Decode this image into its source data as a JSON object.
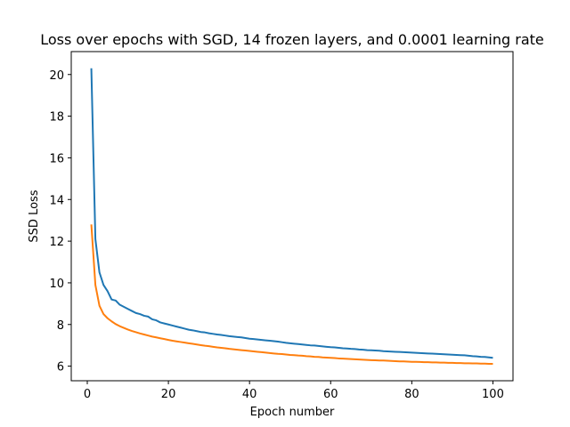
{
  "chart_data": {
    "type": "line",
    "title": "Loss over epochs with SGD, 14 frozen layers, and 0.0001 learning rate",
    "xlabel": "Epoch number",
    "ylabel": "SSD Loss",
    "xlim": [
      -3.95,
      104.95
    ],
    "ylim": [
      5.3,
      21.1
    ],
    "xticks": [
      0,
      20,
      40,
      60,
      80,
      100
    ],
    "yticks": [
      6,
      8,
      10,
      12,
      14,
      16,
      18,
      20
    ],
    "grid": false,
    "legend": "none",
    "series": [
      {
        "color": "#1f77b4",
        "x": [
          1,
          2,
          3,
          4,
          5,
          6,
          7,
          8,
          9,
          10,
          11,
          12,
          13,
          14,
          15,
          16,
          17,
          18,
          19,
          20,
          21,
          22,
          23,
          24,
          25,
          26,
          27,
          28,
          29,
          30,
          31,
          32,
          33,
          34,
          35,
          36,
          37,
          38,
          39,
          40,
          41,
          42,
          43,
          44,
          45,
          46,
          47,
          48,
          49,
          50,
          51,
          52,
          53,
          54,
          55,
          56,
          57,
          58,
          59,
          60,
          61,
          62,
          63,
          64,
          65,
          66,
          67,
          68,
          69,
          70,
          71,
          72,
          73,
          74,
          75,
          76,
          77,
          78,
          79,
          80,
          81,
          82,
          83,
          84,
          85,
          86,
          87,
          88,
          89,
          90,
          91,
          92,
          93,
          94,
          95,
          96,
          97,
          98,
          99,
          100
        ],
        "values": [
          20.3,
          12.1,
          10.5,
          9.9,
          9.6,
          9.2,
          9.15,
          8.95,
          8.85,
          8.75,
          8.65,
          8.55,
          8.5,
          8.42,
          8.38,
          8.25,
          8.2,
          8.1,
          8.05,
          8.0,
          7.95,
          7.9,
          7.85,
          7.8,
          7.75,
          7.72,
          7.68,
          7.64,
          7.62,
          7.58,
          7.55,
          7.52,
          7.5,
          7.47,
          7.44,
          7.42,
          7.4,
          7.38,
          7.35,
          7.32,
          7.3,
          7.28,
          7.26,
          7.24,
          7.22,
          7.2,
          7.18,
          7.15,
          7.12,
          7.1,
          7.08,
          7.06,
          7.04,
          7.02,
          7.0,
          6.99,
          6.97,
          6.95,
          6.93,
          6.91,
          6.9,
          6.88,
          6.86,
          6.85,
          6.83,
          6.82,
          6.8,
          6.79,
          6.77,
          6.76,
          6.75,
          6.74,
          6.72,
          6.71,
          6.7,
          6.69,
          6.68,
          6.67,
          6.66,
          6.65,
          6.64,
          6.63,
          6.62,
          6.61,
          6.6,
          6.59,
          6.58,
          6.57,
          6.56,
          6.55,
          6.54,
          6.53,
          6.52,
          6.5,
          6.48,
          6.47,
          6.45,
          6.44,
          6.42,
          6.4
        ]
      },
      {
        "color": "#ff7f0e",
        "x": [
          1,
          2,
          3,
          4,
          5,
          6,
          7,
          8,
          9,
          10,
          11,
          12,
          13,
          14,
          15,
          16,
          17,
          18,
          19,
          20,
          21,
          22,
          23,
          24,
          25,
          26,
          27,
          28,
          29,
          30,
          31,
          32,
          33,
          34,
          35,
          36,
          37,
          38,
          39,
          40,
          41,
          42,
          43,
          44,
          45,
          46,
          47,
          48,
          49,
          50,
          51,
          52,
          53,
          54,
          55,
          56,
          57,
          58,
          59,
          60,
          61,
          62,
          63,
          64,
          65,
          66,
          67,
          68,
          69,
          70,
          71,
          72,
          73,
          74,
          75,
          76,
          77,
          78,
          79,
          80,
          81,
          82,
          83,
          84,
          85,
          86,
          87,
          88,
          89,
          90,
          91,
          92,
          93,
          94,
          95,
          96,
          97,
          98,
          99,
          100
        ],
        "values": [
          12.8,
          9.9,
          8.9,
          8.5,
          8.3,
          8.15,
          8.02,
          7.92,
          7.84,
          7.76,
          7.69,
          7.63,
          7.57,
          7.52,
          7.47,
          7.42,
          7.38,
          7.34,
          7.3,
          7.26,
          7.22,
          7.19,
          7.16,
          7.13,
          7.1,
          7.07,
          7.04,
          7.01,
          6.98,
          6.96,
          6.93,
          6.9,
          6.88,
          6.86,
          6.83,
          6.81,
          6.79,
          6.77,
          6.75,
          6.73,
          6.71,
          6.69,
          6.67,
          6.65,
          6.63,
          6.61,
          6.59,
          6.58,
          6.56,
          6.54,
          6.53,
          6.51,
          6.5,
          6.48,
          6.47,
          6.45,
          6.44,
          6.42,
          6.41,
          6.4,
          6.39,
          6.37,
          6.36,
          6.35,
          6.34,
          6.33,
          6.32,
          6.31,
          6.3,
          6.29,
          6.28,
          6.27,
          6.27,
          6.26,
          6.25,
          6.24,
          6.23,
          6.23,
          6.22,
          6.21,
          6.21,
          6.2,
          6.19,
          6.19,
          6.18,
          6.18,
          6.17,
          6.17,
          6.16,
          6.16,
          6.15,
          6.15,
          6.14,
          6.14,
          6.13,
          6.13,
          6.12,
          6.12,
          6.11,
          6.11
        ]
      }
    ]
  }
}
